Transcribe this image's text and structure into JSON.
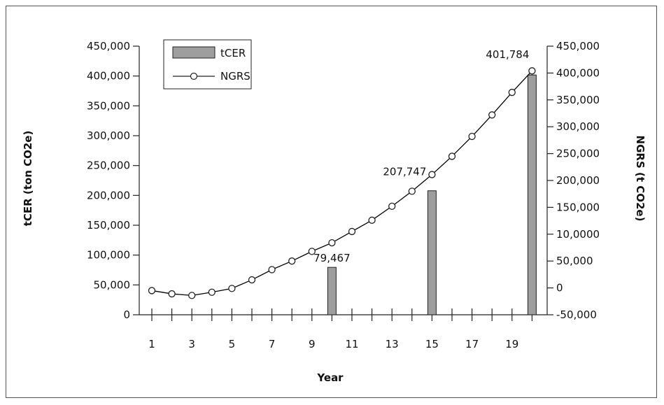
{
  "chart_data": {
    "type": "bar",
    "xlabel": "Year",
    "ylabel": "tCER (ton CO2e)",
    "y2label": "NGRS (t CO2e)",
    "legend_position": "top-left",
    "grid": false,
    "x_ticks": [
      "1",
      "3",
      "5",
      "7",
      "9",
      "11",
      "13",
      "15",
      "17",
      "19"
    ],
    "ylim": [
      0,
      450000
    ],
    "y_ticks": [
      "0",
      "50,000",
      "100,000",
      "150,000",
      "200,000",
      "250,000",
      "300,000",
      "350,000",
      "400,000",
      "450,000"
    ],
    "y2lim": [
      -50000,
      450000
    ],
    "y2_ticks": [
      "-50,000",
      "0",
      "50,000",
      "10,0000",
      "150,000",
      "200,000",
      "250,000",
      "300,000",
      "350,000",
      "400,000",
      "450,000"
    ],
    "series": [
      {
        "name": "tCER",
        "type": "bar",
        "axis": "left",
        "color": "#9e9e9e",
        "x": [
          10,
          15,
          20
        ],
        "values": [
          79467,
          207747,
          401784
        ],
        "labels": [
          "79,467",
          "207,747",
          "401,784"
        ]
      },
      {
        "name": "NGRS",
        "type": "line",
        "axis": "right",
        "color": "#000000",
        "x": [
          1,
          2,
          3,
          4,
          5,
          6,
          7,
          8,
          9,
          10,
          11,
          12,
          13,
          14,
          15,
          16,
          17,
          18,
          19,
          20
        ],
        "values": [
          -5000,
          -11000,
          -14000,
          -8000,
          -1000,
          15000,
          34000,
          50000,
          68000,
          84000,
          105000,
          126000,
          152000,
          180000,
          211000,
          245000,
          282000,
          322000,
          364000,
          404000
        ]
      }
    ]
  }
}
